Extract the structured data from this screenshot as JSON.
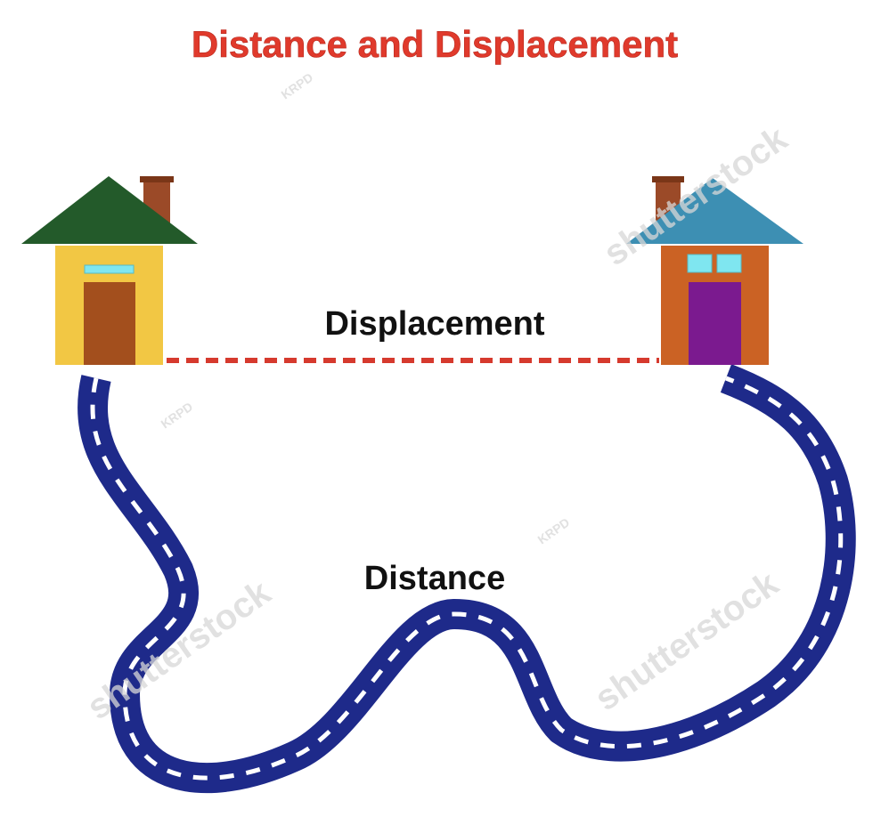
{
  "title": "Distance and Displacement",
  "labels": {
    "displacement": "Displacement",
    "distance": "Distance"
  },
  "watermarks": [
    "shutterstock",
    "KRPD"
  ],
  "colors": {
    "title": "#e03a2c",
    "house_left_roof": "#235a2a",
    "house_left_wall": "#f2c744",
    "house_left_door": "#a34f1d",
    "house_right_roof": "#3d8fb3",
    "house_right_wall": "#cb6224",
    "house_right_door": "#7b1a8f",
    "window": "#7fe6f0",
    "chimney": "#9b4a28",
    "displacement_line": "#d63a2e",
    "road": "#1e2a8a",
    "road_dash": "#ffffff"
  }
}
